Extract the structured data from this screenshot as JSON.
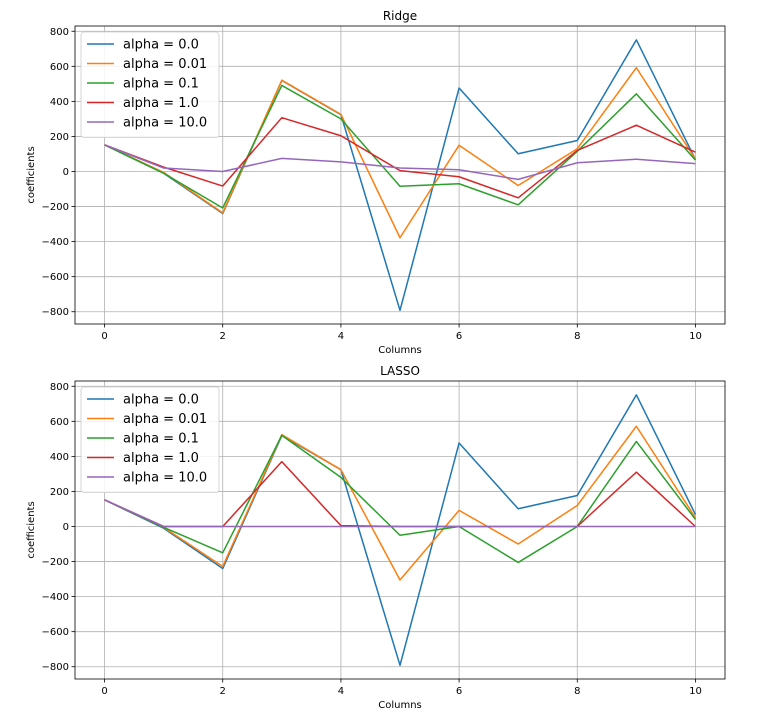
{
  "chart_data": [
    {
      "type": "line",
      "title": "Ridge",
      "xlabel": "Columns",
      "ylabel": "coefficients",
      "xlim": [
        -0.5,
        10.5
      ],
      "ylim": [
        -870,
        830
      ],
      "xticks": [
        0,
        2,
        4,
        6,
        8,
        10
      ],
      "yticks": [
        -800,
        -600,
        -400,
        -200,
        0,
        200,
        400,
        600,
        800
      ],
      "ytick_labels": [
        "−800",
        "−600",
        "−400",
        "−200",
        "0",
        "200",
        "400",
        "600",
        "800"
      ],
      "grid": true,
      "legend": "top-left",
      "x": [
        0,
        1,
        2,
        3,
        4,
        5,
        6,
        7,
        8,
        9,
        10
      ],
      "series": [
        {
          "name": "alpha = 0.0",
          "color": "#1f77b4",
          "values": [
            152,
            -10,
            -240,
            519,
            324,
            -792,
            476,
            101,
            177,
            751,
            68
          ]
        },
        {
          "name": "alpha = 0.01",
          "color": "#ff7f0e",
          "values": [
            152,
            -5,
            -236,
            521,
            326,
            -378,
            150,
            -80,
            130,
            592,
            70
          ]
        },
        {
          "name": "alpha = 0.1",
          "color": "#2ca02c",
          "values": [
            152,
            -10,
            -208,
            491,
            300,
            -84,
            -70,
            -190,
            115,
            443,
            65
          ]
        },
        {
          "name": "alpha = 1.0",
          "color": "#d62728",
          "values": [
            152,
            25,
            -83,
            307,
            204,
            5,
            -30,
            -150,
            120,
            264,
            110
          ]
        },
        {
          "name": "alpha = 10.0",
          "color": "#9467bd",
          "values": [
            152,
            20,
            0,
            75,
            55,
            20,
            10,
            -45,
            50,
            70,
            45
          ]
        }
      ]
    },
    {
      "type": "line",
      "title": "LASSO",
      "xlabel": "Columns",
      "ylabel": "coefficients",
      "xlim": [
        -0.5,
        10.5
      ],
      "ylim": [
        -870,
        830
      ],
      "xticks": [
        0,
        2,
        4,
        6,
        8,
        10
      ],
      "yticks": [
        -800,
        -600,
        -400,
        -200,
        0,
        200,
        400,
        600,
        800
      ],
      "ytick_labels": [
        "−800",
        "−600",
        "−400",
        "−200",
        "0",
        "200",
        "400",
        "600",
        "800"
      ],
      "grid": true,
      "legend": "top-left",
      "x": [
        0,
        1,
        2,
        3,
        4,
        5,
        6,
        7,
        8,
        9,
        10
      ],
      "series": [
        {
          "name": "alpha = 0.0",
          "color": "#1f77b4",
          "values": [
            152,
            -10,
            -240,
            519,
            324,
            -792,
            476,
            101,
            177,
            751,
            68
          ]
        },
        {
          "name": "alpha = 0.01",
          "color": "#ff7f0e",
          "values": [
            152,
            -5,
            -228,
            524,
            324,
            -305,
            92,
            -100,
            120,
            572,
            50
          ]
        },
        {
          "name": "alpha = 0.1",
          "color": "#2ca02c",
          "values": [
            152,
            -5,
            -150,
            520,
            280,
            -50,
            0,
            -205,
            0,
            485,
            40
          ]
        },
        {
          "name": "alpha = 1.0",
          "color": "#d62728",
          "values": [
            152,
            0,
            0,
            370,
            5,
            0,
            0,
            0,
            0,
            310,
            0
          ]
        },
        {
          "name": "alpha = 10.0",
          "color": "#9467bd",
          "values": [
            152,
            0,
            0,
            0,
            0,
            0,
            0,
            0,
            0,
            0,
            0
          ]
        }
      ]
    }
  ]
}
